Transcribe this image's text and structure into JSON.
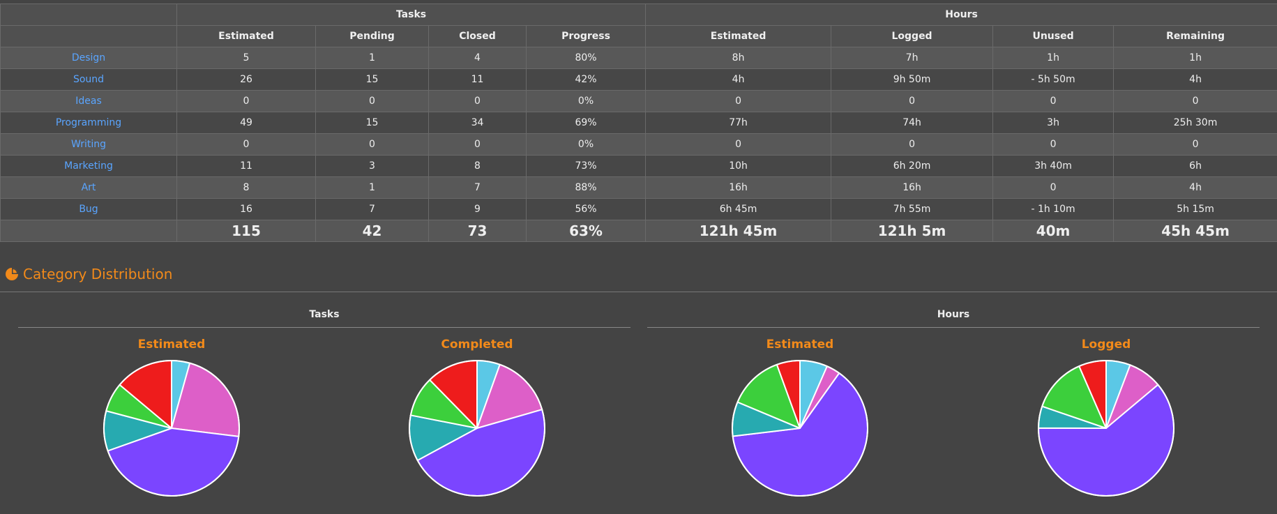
{
  "table": {
    "group_headers": {
      "tasks": "Tasks",
      "hours": "Hours"
    },
    "columns": [
      "Estimated",
      "Pending",
      "Closed",
      "Progress",
      "Estimated",
      "Logged",
      "Unused",
      "Remaining"
    ],
    "rows": [
      {
        "category": "Design",
        "values": [
          "5",
          "1",
          "4",
          "80%",
          "8h",
          "7h",
          "1h",
          "1h"
        ]
      },
      {
        "category": "Sound",
        "values": [
          "26",
          "15",
          "11",
          "42%",
          "4h",
          "9h 50m",
          "- 5h 50m",
          "4h"
        ]
      },
      {
        "category": "Ideas",
        "values": [
          "0",
          "0",
          "0",
          "0%",
          "0",
          "0",
          "0",
          "0"
        ]
      },
      {
        "category": "Programming",
        "values": [
          "49",
          "15",
          "34",
          "69%",
          "77h",
          "74h",
          "3h",
          "25h 30m"
        ]
      },
      {
        "category": "Writing",
        "values": [
          "0",
          "0",
          "0",
          "0%",
          "0",
          "0",
          "0",
          "0"
        ]
      },
      {
        "category": "Marketing",
        "values": [
          "11",
          "3",
          "8",
          "73%",
          "10h",
          "6h 20m",
          "3h 40m",
          "6h"
        ]
      },
      {
        "category": "Art",
        "values": [
          "8",
          "1",
          "7",
          "88%",
          "16h",
          "16h",
          "0",
          "4h"
        ]
      },
      {
        "category": "Bug",
        "values": [
          "16",
          "7",
          "9",
          "56%",
          "6h 45m",
          "7h 55m",
          "- 1h 10m",
          "5h 15m"
        ]
      }
    ],
    "totals": [
      "115",
      "42",
      "73",
      "63%",
      "121h 45m",
      "121h 5m",
      "40m",
      "45h 45m"
    ]
  },
  "section": {
    "title": "Category Distribution",
    "icon": "pie-chart-icon"
  },
  "chart_groups": {
    "tasks": "Tasks",
    "hours": "Hours"
  },
  "colors": {
    "Design": "#5bc8e6",
    "Sound": "#dd5fc8",
    "Programming": "#7b45ff",
    "Marketing": "#27aab0",
    "Art": "#3ccf3c",
    "Bug": "#ee1c1c",
    "accent": "#f28a1a",
    "link": "#5aa5ff"
  },
  "chart_data": [
    {
      "type": "pie",
      "title": "Estimated",
      "group": "Tasks",
      "categories": [
        "Design",
        "Sound",
        "Programming",
        "Marketing",
        "Art",
        "Bug"
      ],
      "values": [
        5,
        26,
        49,
        11,
        8,
        16
      ]
    },
    {
      "type": "pie",
      "title": "Completed",
      "group": "Tasks",
      "categories": [
        "Design",
        "Sound",
        "Programming",
        "Marketing",
        "Art",
        "Bug"
      ],
      "values": [
        4,
        11,
        34,
        8,
        7,
        9
      ]
    },
    {
      "type": "pie",
      "title": "Estimated",
      "group": "Hours",
      "categories": [
        "Design",
        "Sound",
        "Programming",
        "Marketing",
        "Art",
        "Bug"
      ],
      "values": [
        8,
        4,
        77,
        10,
        16,
        6.75
      ]
    },
    {
      "type": "pie",
      "title": "Logged",
      "group": "Hours",
      "categories": [
        "Design",
        "Sound",
        "Programming",
        "Marketing",
        "Art",
        "Bug"
      ],
      "values": [
        7,
        9.83,
        74,
        6.33,
        16,
        7.92
      ]
    }
  ]
}
